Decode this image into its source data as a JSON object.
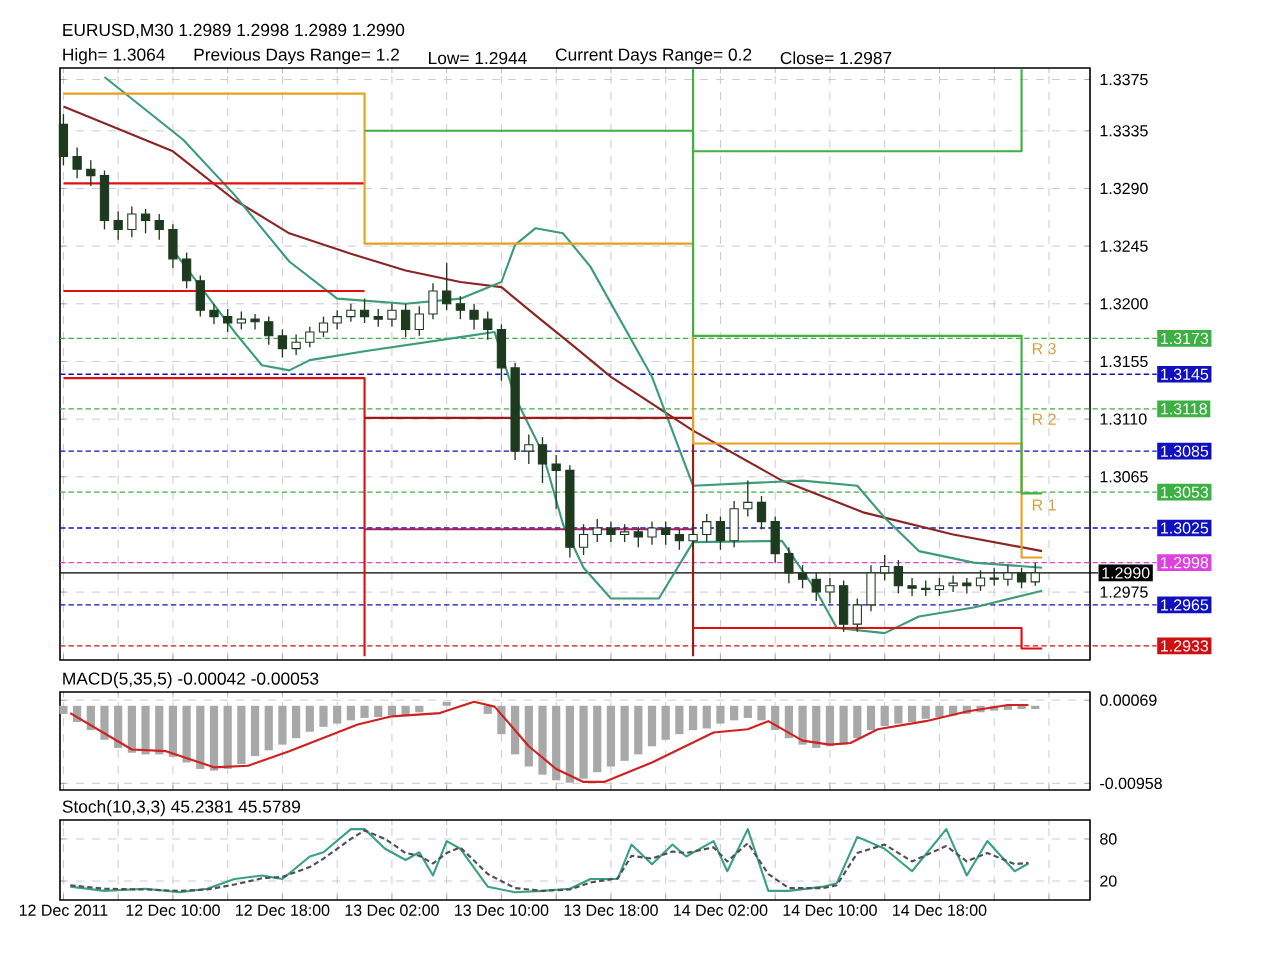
{
  "chart_data": [
    {
      "type": "candlestick",
      "title": "EURUSD,M30  1.2989 1.2998 1.2989 1.2990",
      "annotations": [
        "High= 1.3064",
        "Previous Days Range= 1.2",
        "Low= 1.2944",
        "Current Days Range= 0.2",
        "Close= 1.2987",
        {
          "text": "R 3",
          "x": "2011-12-15T00:30",
          "y": 1.3165
        },
        {
          "text": "R 2",
          "x": "2011-12-15T00:30",
          "y": 1.311
        },
        {
          "text": "R 1",
          "x": "2011-12-15T00:30",
          "y": 1.3043
        }
      ],
      "x": [
        "2011-12-12T02:00",
        "2011-12-12T03:00",
        "2011-12-12T04:00",
        "2011-12-12T05:00",
        "2011-12-12T06:00",
        "2011-12-12T07:00",
        "2011-12-12T08:00",
        "2011-12-12T09:00",
        "2011-12-12T10:00",
        "2011-12-12T11:00",
        "2011-12-12T12:00",
        "2011-12-12T13:00",
        "2011-12-12T14:00",
        "2011-12-12T15:00",
        "2011-12-12T16:00",
        "2011-12-12T17:00",
        "2011-12-12T18:00",
        "2011-12-12T19:00",
        "2011-12-12T20:00",
        "2011-12-12T21:00",
        "2011-12-12T22:00",
        "2011-12-12T23:00",
        "2011-12-13T00:00",
        "2011-12-13T01:00",
        "2011-12-13T02:00",
        "2011-12-13T03:00",
        "2011-12-13T04:00",
        "2011-12-13T05:00",
        "2011-12-13T06:00",
        "2011-12-13T07:00",
        "2011-12-13T08:00",
        "2011-12-13T09:00",
        "2011-12-13T10:00",
        "2011-12-13T11:00",
        "2011-12-13T12:00",
        "2011-12-13T13:00",
        "2011-12-13T14:00",
        "2011-12-13T15:00",
        "2011-12-13T16:00",
        "2011-12-13T17:00",
        "2011-12-13T18:00",
        "2011-12-13T19:00",
        "2011-12-13T20:00",
        "2011-12-13T21:00",
        "2011-12-13T22:00",
        "2011-12-13T23:00",
        "2011-12-14T00:00",
        "2011-12-14T01:00",
        "2011-12-14T02:00",
        "2011-12-14T03:00",
        "2011-12-14T04:00",
        "2011-12-14T05:00",
        "2011-12-14T06:00",
        "2011-12-14T07:00",
        "2011-12-14T08:00",
        "2011-12-14T09:00",
        "2011-12-14T10:00",
        "2011-12-14T11:00",
        "2011-12-14T12:00",
        "2011-12-14T13:00",
        "2011-12-14T14:00",
        "2011-12-14T15:00",
        "2011-12-14T16:00",
        "2011-12-14T17:00",
        "2011-12-14T18:00",
        "2011-12-14T19:00",
        "2011-12-14T20:00",
        "2011-12-14T21:00",
        "2011-12-14T22:00",
        "2011-12-14T23:00",
        "2011-12-15T00:00",
        "2011-12-15T01:00"
      ],
      "ohlc": [
        [
          1.334,
          1.3348,
          1.3308,
          1.3315
        ],
        [
          1.3315,
          1.3322,
          1.3298,
          1.3305
        ],
        [
          1.3305,
          1.3312,
          1.3292,
          1.33
        ],
        [
          1.33,
          1.3304,
          1.3258,
          1.3265
        ],
        [
          1.3265,
          1.3272,
          1.325,
          1.3258
        ],
        [
          1.3258,
          1.3276,
          1.3252,
          1.327
        ],
        [
          1.327,
          1.3274,
          1.3255,
          1.3265
        ],
        [
          1.3265,
          1.327,
          1.325,
          1.3258
        ],
        [
          1.3258,
          1.3262,
          1.3228,
          1.3235
        ],
        [
          1.3235,
          1.324,
          1.3212,
          1.3218
        ],
        [
          1.3218,
          1.3222,
          1.319,
          1.3195
        ],
        [
          1.3195,
          1.32,
          1.3184,
          1.319
        ],
        [
          1.319,
          1.3196,
          1.3178,
          1.3185
        ],
        [
          1.3185,
          1.3194,
          1.318,
          1.3188
        ],
        [
          1.3188,
          1.3192,
          1.318,
          1.3186
        ],
        [
          1.3186,
          1.319,
          1.3168,
          1.3175
        ],
        [
          1.3175,
          1.318,
          1.3158,
          1.3165
        ],
        [
          1.3165,
          1.3176,
          1.316,
          1.317
        ],
        [
          1.317,
          1.3182,
          1.3166,
          1.3178
        ],
        [
          1.3178,
          1.319,
          1.3174,
          1.3185
        ],
        [
          1.3185,
          1.3195,
          1.318,
          1.319
        ],
        [
          1.319,
          1.32,
          1.3186,
          1.3195
        ],
        [
          1.3195,
          1.3204,
          1.3185,
          1.319
        ],
        [
          1.319,
          1.3196,
          1.3182,
          1.3188
        ],
        [
          1.3188,
          1.32,
          1.3182,
          1.3195
        ],
        [
          1.3195,
          1.32,
          1.3174,
          1.318
        ],
        [
          1.318,
          1.3198,
          1.3175,
          1.3192
        ],
        [
          1.3192,
          1.3216,
          1.3188,
          1.321
        ],
        [
          1.321,
          1.3232,
          1.3195,
          1.32
        ],
        [
          1.32,
          1.3206,
          1.3188,
          1.3195
        ],
        [
          1.3195,
          1.32,
          1.318,
          1.3188
        ],
        [
          1.3188,
          1.3194,
          1.3172,
          1.318
        ],
        [
          1.318,
          1.3184,
          1.314,
          1.315
        ],
        [
          1.315,
          1.3154,
          1.3078,
          1.3085
        ],
        [
          1.3085,
          1.3098,
          1.3075,
          1.309
        ],
        [
          1.309,
          1.3096,
          1.306,
          1.3075
        ],
        [
          1.3075,
          1.3082,
          1.304,
          1.307
        ],
        [
          1.307,
          1.3074,
          1.3002,
          1.301
        ],
        [
          1.301,
          1.3028,
          1.3004,
          1.302
        ],
        [
          1.302,
          1.3032,
          1.3014,
          1.3025
        ],
        [
          1.3025,
          1.303,
          1.3014,
          1.302
        ],
        [
          1.302,
          1.3028,
          1.3014,
          1.3022
        ],
        [
          1.3022,
          1.3026,
          1.301,
          1.3018
        ],
        [
          1.3018,
          1.303,
          1.3012,
          1.3025
        ],
        [
          1.3025,
          1.303,
          1.3012,
          1.302
        ],
        [
          1.302,
          1.3024,
          1.3008,
          1.3015
        ],
        [
          1.3015,
          1.3028,
          1.301,
          1.302
        ],
        [
          1.302,
          1.3036,
          1.3014,
          1.303
        ],
        [
          1.303,
          1.3034,
          1.3008,
          1.3015
        ],
        [
          1.3015,
          1.3046,
          1.301,
          1.304
        ],
        [
          1.304,
          1.3062,
          1.3034,
          1.3045
        ],
        [
          1.3045,
          1.305,
          1.3024,
          1.303
        ],
        [
          1.303,
          1.3034,
          1.2998,
          1.3005
        ],
        [
          1.3005,
          1.301,
          1.2982,
          1.299
        ],
        [
          1.299,
          1.2996,
          1.2978,
          1.2985
        ],
        [
          1.2985,
          1.299,
          1.2968,
          1.2975
        ],
        [
          1.2975,
          1.2986,
          1.2966,
          1.298
        ],
        [
          1.298,
          1.2984,
          1.2944,
          1.295
        ],
        [
          1.295,
          1.297,
          1.2944,
          1.2965
        ],
        [
          1.2965,
          1.2996,
          1.296,
          1.299
        ],
        [
          1.299,
          1.3004,
          1.2984,
          1.2995
        ],
        [
          1.2995,
          1.3,
          1.2974,
          1.298
        ],
        [
          1.298,
          1.2986,
          1.2972,
          1.2978
        ],
        [
          1.2978,
          1.2984,
          1.2972,
          1.2977
        ],
        [
          1.2977,
          1.2986,
          1.2972,
          1.298
        ],
        [
          1.298,
          1.2988,
          1.2975,
          1.2982
        ],
        [
          1.2982,
          1.2986,
          1.2974,
          1.298
        ],
        [
          1.298,
          1.2992,
          1.2976,
          1.2986
        ],
        [
          1.2986,
          1.2994,
          1.298,
          1.2985
        ],
        [
          1.2985,
          1.2996,
          1.298,
          1.299
        ],
        [
          1.299,
          1.2994,
          1.2978,
          1.2983
        ],
        [
          1.2983,
          1.2998,
          1.298,
          1.299
        ]
      ],
      "series": [
        {
          "type": "line",
          "color": "#8b2525",
          "x": [
            "2011-12-12T02:00",
            "2011-12-12T10:00",
            "2011-12-12T14:30",
            "2011-12-12T18:30",
            "2011-12-12T23:00",
            "2011-12-13T03:00",
            "2011-12-13T07:00",
            "2011-12-13T10:00",
            "2011-12-13T12:30",
            "2011-12-13T15:30",
            "2011-12-13T18:00",
            "2011-12-14T00:00",
            "2011-12-14T06:30",
            "2011-12-14T12:30",
            "2011-12-14T19:00",
            "2011-12-15T01:30"
          ],
          "values": [
            1.3354,
            1.3319,
            1.3281,
            1.3255,
            1.3239,
            1.3226,
            1.3217,
            1.3213,
            1.3191,
            1.3165,
            1.3143,
            1.3101,
            1.3062,
            1.3037,
            1.302,
            1.3007
          ]
        },
        {
          "type": "line",
          "color": "#3c9c78",
          "x": [
            "2011-12-12T05:00",
            "2011-12-12T10:45",
            "2011-12-12T14:30",
            "2011-12-12T18:30",
            "2011-12-12T22:00",
            "2011-12-13T03:00",
            "2011-12-13T07:00",
            "2011-12-13T10:00",
            "2011-12-13T11:00",
            "2011-12-13T12:30",
            "2011-12-13T14:30",
            "2011-12-13T16:30",
            "2011-12-13T21:00",
            "2011-12-14T00:00",
            "2011-12-14T04:00",
            "2011-12-14T08:00",
            "2011-12-14T12:00",
            "2011-12-14T14:00",
            "2011-12-14T16:30",
            "2011-12-14T20:30",
            "2011-12-15T01:30"
          ],
          "values": [
            1.3377,
            1.3328,
            1.3285,
            1.3233,
            1.3204,
            1.32,
            1.3204,
            1.3217,
            1.3246,
            1.3259,
            1.3255,
            1.3229,
            1.3143,
            1.3058,
            1.306,
            1.3062,
            1.3058,
            1.3033,
            1.3007,
            1.2998,
            1.2994
          ]
        },
        {
          "type": "line",
          "color": "#3c9c78",
          "x": [
            "2011-12-12T10:00",
            "2011-12-12T14:30",
            "2011-12-12T16:30",
            "2011-12-12T18:30",
            "2011-12-12T20:00",
            "2011-12-13T00:00",
            "2011-12-13T07:00",
            "2011-12-13T09:30",
            "2011-12-13T11:00",
            "2011-12-13T13:00",
            "2011-12-13T14:30",
            "2011-12-13T16:00",
            "2011-12-13T18:00",
            "2011-12-13T21:30",
            "2011-12-14T00:00",
            "2011-12-14T06:30",
            "2011-12-14T09:00",
            "2011-12-14T10:30",
            "2011-12-14T14:00",
            "2011-12-14T16:30",
            "2011-12-14T20:30",
            "2011-12-15T01:30"
          ],
          "values": [
            1.3242,
            1.3178,
            1.3152,
            1.3148,
            1.3156,
            1.3163,
            1.3174,
            1.3178,
            1.3127,
            1.3084,
            1.3028,
            1.2994,
            1.297,
            1.297,
            1.3014,
            1.3015,
            1.2976,
            1.2947,
            1.2943,
            1.2956,
            1.2963,
            1.2976
          ]
        },
        {
          "type": "line",
          "color": "#e01010",
          "x": [
            "2011-12-12T02:00",
            "2011-12-13T00:00"
          ],
          "values": [
            1.3294,
            1.3294
          ]
        },
        {
          "type": "line",
          "color": "#e01010",
          "x": [
            "2011-12-12T02:00",
            "2011-12-13T00:00"
          ],
          "values": [
            1.321,
            1.321
          ]
        },
        {
          "type": "line",
          "color": "#e01010",
          "x": [
            "2011-12-12T02:00",
            "2011-12-13T00:00",
            "2011-12-13T00:00"
          ],
          "values": [
            1.3142,
            1.3142,
            1.2925
          ]
        },
        {
          "type": "line",
          "color": "#a01818",
          "x": [
            "2011-12-13T00:00",
            "2011-12-14T00:00",
            "2011-12-14T00:00"
          ],
          "values": [
            1.3111,
            1.3111,
            1.2925
          ]
        },
        {
          "type": "line",
          "color": "#e01010",
          "x": [
            "2011-12-14T00:00",
            "2011-12-15T00:00",
            "2011-12-15T00:00",
            "2011-12-15T01:30"
          ],
          "values": [
            1.2947,
            1.2947,
            1.2931,
            1.2931
          ]
        },
        {
          "type": "line",
          "color": "#a02060",
          "x": [
            "2011-12-13T00:00",
            "2011-12-14T00:00"
          ],
          "values": [
            1.3024,
            1.3024
          ]
        },
        {
          "type": "line",
          "color": "#e8a020",
          "x": [
            "2011-12-12T02:00",
            "2011-12-13T00:00",
            "2011-12-13T00:00",
            "2011-12-14T00:00",
            "2011-12-14T00:00",
            "2011-12-15T00:00",
            "2011-12-15T00:00",
            "2011-12-15T01:30"
          ],
          "values": [
            1.3364,
            1.3364,
            1.3247,
            1.3247,
            1.3091,
            1.3091,
            1.3002,
            1.3002
          ]
        },
        {
          "type": "line",
          "color": "#40b040",
          "x": [
            "2011-12-13T00:00",
            "2011-12-14T00:00",
            "2011-12-14T00:00",
            "2011-12-15T00:00",
            "2011-12-15T00:00",
            "2011-12-15T01:30"
          ],
          "values": [
            1.3335,
            1.3335,
            1.3175,
            1.3175,
            1.3052,
            1.3052
          ]
        },
        {
          "type": "line",
          "color": "#40b040",
          "x": [
            "2011-12-14T00:00",
            "2011-12-14T00:00",
            "2011-12-15T00:00",
            "2011-12-15T00:00"
          ],
          "values": [
            1.3383,
            1.3319,
            1.3319,
            1.3383
          ]
        }
      ],
      "ref_lines": [
        {
          "axis": "y",
          "value": 1.3173,
          "label": "1.3173",
          "color": "#3cb043",
          "line_style": "dashed"
        },
        {
          "axis": "y",
          "value": 1.3145,
          "label": "1.3145",
          "color": "#1010c0",
          "line_style": "dashed"
        },
        {
          "axis": "y",
          "value": 1.3118,
          "label": "1.3118",
          "color": "#3cb043",
          "line_style": "dashed"
        },
        {
          "axis": "y",
          "value": 1.3085,
          "label": "1.3085",
          "color": "#1010c0",
          "line_style": "dashed"
        },
        {
          "axis": "y",
          "value": 1.3053,
          "label": "1.3053",
          "color": "#3cb043",
          "line_style": "dashed"
        },
        {
          "axis": "y",
          "value": 1.3025,
          "label": "1.3025",
          "color": "#1010c0",
          "line_style": "dashed"
        },
        {
          "axis": "y",
          "value": 1.2998,
          "label": "1.2998",
          "color": "#e040e0",
          "line_style": "dashed"
        },
        {
          "axis": "y",
          "value": 1.299,
          "label": "1.2990",
          "color": "#000000",
          "line_style": "solid"
        },
        {
          "axis": "y",
          "value": 1.2965,
          "label": "1.2965",
          "color": "#1010c0",
          "line_style": "dashed"
        },
        {
          "axis": "y",
          "value": 1.2933,
          "label": "1.2933",
          "color": "#d01010",
          "line_style": "dashed"
        }
      ],
      "xlim": [
        "2011-12-12T01:45",
        "2011-12-15T05:00"
      ],
      "xticks": [
        "2011-12-12T02:00",
        "2011-12-12T06:00",
        "2011-12-12T10:00",
        "2011-12-12T14:00",
        "2011-12-12T18:00",
        "2011-12-12T22:00",
        "2011-12-13T02:00",
        "2011-12-13T06:00",
        "2011-12-13T10:00",
        "2011-12-13T14:00",
        "2011-12-13T18:00",
        "2011-12-13T22:00",
        "2011-12-14T02:00",
        "2011-12-14T06:00",
        "2011-12-14T10:00",
        "2011-12-14T14:00",
        "2011-12-14T18:00",
        "2011-12-14T22:00",
        "2011-12-15T02:00"
      ],
      "ylim": [
        1.2922,
        1.3384
      ],
      "yticks": [
        {
          "value": 1.3375,
          "label": "1.3375"
        },
        {
          "value": 1.3335,
          "label": "1.3335"
        },
        {
          "value": 1.329,
          "label": "1.3290"
        },
        {
          "value": 1.3245,
          "label": "1.3245"
        },
        {
          "value": 1.32,
          "label": "1.3200"
        },
        {
          "value": 1.3155,
          "label": "1.3155"
        },
        {
          "value": 1.311,
          "label": "1.3110"
        },
        {
          "value": 1.3065,
          "label": "1.3065"
        },
        {
          "value": 1.2975,
          "label": "1.2975"
        }
      ],
      "grid": true,
      "tick_labels": "y"
    },
    {
      "type": "bar",
      "title": "MACD(5,35,5) -0.00042 -0.00053",
      "series": [
        {
          "color": "#a8a8a8",
          "x": [
            "2011-12-12T02:00",
            "2011-12-12T03:00",
            "2011-12-12T04:00",
            "2011-12-12T05:00",
            "2011-12-12T06:00",
            "2011-12-12T07:00",
            "2011-12-12T08:00",
            "2011-12-12T09:00",
            "2011-12-12T10:00",
            "2011-12-12T11:00",
            "2011-12-12T12:00",
            "2011-12-12T13:00",
            "2011-12-12T14:00",
            "2011-12-12T15:00",
            "2011-12-12T16:00",
            "2011-12-12T17:00",
            "2011-12-12T18:00",
            "2011-12-12T19:00",
            "2011-12-12T20:00",
            "2011-12-12T21:00",
            "2011-12-12T22:00",
            "2011-12-12T23:00",
            "2011-12-13T00:00",
            "2011-12-13T01:00",
            "2011-12-13T02:00",
            "2011-12-13T03:00",
            "2011-12-13T04:00",
            "2011-12-13T05:00",
            "2011-12-13T06:00",
            "2011-12-13T07:00",
            "2011-12-13T08:00",
            "2011-12-13T09:00",
            "2011-12-13T10:00",
            "2011-12-13T11:00",
            "2011-12-13T12:00",
            "2011-12-13T13:00",
            "2011-12-13T14:00",
            "2011-12-13T15:00",
            "2011-12-13T16:00",
            "2011-12-13T17:00",
            "2011-12-13T18:00",
            "2011-12-13T19:00",
            "2011-12-13T20:00",
            "2011-12-13T21:00",
            "2011-12-13T22:00",
            "2011-12-13T23:00",
            "2011-12-14T00:00",
            "2011-12-14T01:00",
            "2011-12-14T02:00",
            "2011-12-14T03:00",
            "2011-12-14T04:00",
            "2011-12-14T05:00",
            "2011-12-14T06:00",
            "2011-12-14T07:00",
            "2011-12-14T08:00",
            "2011-12-14T09:00",
            "2011-12-14T10:00",
            "2011-12-14T11:00",
            "2011-12-14T12:00",
            "2011-12-14T13:00",
            "2011-12-14T14:00",
            "2011-12-14T15:00",
            "2011-12-14T16:00",
            "2011-12-14T17:00",
            "2011-12-14T18:00",
            "2011-12-14T19:00",
            "2011-12-14T20:00",
            "2011-12-14T21:00",
            "2011-12-14T22:00",
            "2011-12-14T23:00",
            "2011-12-15T00:00",
            "2011-12-15T01:00"
          ],
          "values": [
            -0.001,
            -0.002,
            -0.003,
            -0.0042,
            -0.0052,
            -0.0058,
            -0.006,
            -0.006,
            -0.0063,
            -0.007,
            -0.0078,
            -0.008,
            -0.0078,
            -0.0072,
            -0.0062,
            -0.0055,
            -0.0048,
            -0.004,
            -0.0032,
            -0.0026,
            -0.0022,
            -0.0018,
            -0.0015,
            -0.0014,
            -0.0012,
            -0.0012,
            -0.0008,
            null,
            0.0005,
            null,
            null,
            -0.001,
            -0.0035,
            -0.006,
            -0.0075,
            -0.0085,
            -0.0092,
            -0.0095,
            -0.009,
            -0.0082,
            -0.0075,
            -0.0068,
            -0.006,
            -0.005,
            -0.0042,
            -0.0035,
            -0.003,
            -0.0028,
            -0.0022,
            -0.0018,
            -0.0015,
            -0.0018,
            -0.003,
            -0.004,
            -0.0048,
            -0.0052,
            -0.005,
            -0.0048,
            -0.004,
            -0.003,
            -0.0025,
            -0.0022,
            -0.002,
            -0.0016,
            -0.0014,
            -0.0012,
            -0.001,
            -0.0008,
            -0.0006,
            -0.0005,
            -0.0004,
            -0.0004
          ]
        },
        {
          "type": "line",
          "color": "#d02020",
          "x": [
            "2011-12-12T02:30",
            "2011-12-12T07:00",
            "2011-12-12T09:30",
            "2011-12-12T13:00",
            "2011-12-12T15:30",
            "2011-12-12T18:30",
            "2011-12-12T23:30",
            "2011-12-13T02:00",
            "2011-12-13T05:30",
            "2011-12-13T08:00",
            "2011-12-13T09:30",
            "2011-12-13T12:00",
            "2011-12-13T14:00",
            "2011-12-13T16:00",
            "2011-12-13T17:30",
            "2011-12-13T21:00",
            "2011-12-14T01:30",
            "2011-12-14T04:00",
            "2011-12-14T05:30",
            "2011-12-14T08:00",
            "2011-12-14T10:00",
            "2011-12-14T11:30",
            "2011-12-14T13:30",
            "2011-12-14T17:00",
            "2011-12-14T20:00",
            "2011-12-14T23:00",
            "2011-12-15T00:30"
          ],
          "values": [
            -0.0009,
            -0.0054,
            -0.0056,
            -0.0076,
            -0.0074,
            -0.0056,
            -0.0023,
            -0.0013,
            -0.0009,
            0.0005,
            -0.0001,
            -0.005,
            -0.0078,
            -0.0094,
            -0.0094,
            -0.007,
            -0.0033,
            -0.0029,
            -0.0019,
            -0.0043,
            -0.0048,
            -0.0046,
            -0.0029,
            -0.0019,
            -0.0007,
            0.0001,
            0.0001
          ]
        }
      ],
      "xlim": [
        "2011-12-12T01:45",
        "2011-12-15T05:00"
      ],
      "xticks": [
        "2011-12-12T02:00",
        "2011-12-12T06:00",
        "2011-12-12T10:00",
        "2011-12-12T14:00",
        "2011-12-12T18:00",
        "2011-12-12T22:00",
        "2011-12-13T02:00",
        "2011-12-13T06:00",
        "2011-12-13T10:00",
        "2011-12-13T14:00",
        "2011-12-13T18:00",
        "2011-12-13T22:00",
        "2011-12-14T02:00",
        "2011-12-14T06:00",
        "2011-12-14T10:00",
        "2011-12-14T14:00",
        "2011-12-14T18:00",
        "2011-12-14T22:00",
        "2011-12-15T02:00"
      ],
      "ylim": [
        -0.0104,
        0.0017
      ],
      "yticks": [
        {
          "value": 0.00069,
          "label": "0.00069"
        },
        {
          "value": -0.00958,
          "label": "-0.00958"
        }
      ],
      "grid": true,
      "tick_labels": "y"
    },
    {
      "type": "line",
      "title": "Stoch(10,3,3) 45.2381 45.5789",
      "series": [
        {
          "color": "#3aa088",
          "x": [
            "2011-12-12T02:30",
            "2011-12-12T05:00",
            "2011-12-12T08:00",
            "2011-12-12T10:30",
            "2011-12-12T12:30",
            "2011-12-12T14:30",
            "2011-12-12T16:30",
            "2011-12-12T18:00",
            "2011-12-12T20:00",
            "2011-12-12T21:00",
            "2011-12-12T23:00",
            "2011-12-13T00:00",
            "2011-12-13T01:30",
            "2011-12-13T03:00",
            "2011-12-13T04:00",
            "2011-12-13T05:00",
            "2011-12-13T06:00",
            "2011-12-13T07:00",
            "2011-12-13T09:00",
            "2011-12-13T11:00",
            "2011-12-13T13:00",
            "2011-12-13T15:00",
            "2011-12-13T16:30",
            "2011-12-13T18:30",
            "2011-12-13T19:30",
            "2011-12-13T21:00",
            "2011-12-13T22:30",
            "2011-12-13T23:30",
            "2011-12-14T01:30",
            "2011-12-14T02:30",
            "2011-12-14T04:00",
            "2011-12-14T05:30",
            "2011-12-14T07:00",
            "2011-12-14T09:30",
            "2011-12-14T10:30",
            "2011-12-14T12:00",
            "2011-12-14T14:00",
            "2011-12-14T16:00",
            "2011-12-14T18:30",
            "2011-12-14T20:00",
            "2011-12-14T21:30",
            "2011-12-14T23:30",
            "2011-12-15T00:30"
          ],
          "values": [
            12,
            6,
            9,
            4,
            9,
            23,
            28,
            23,
            55,
            61,
            94,
            94,
            66,
            50,
            61,
            28,
            77,
            66,
            12,
            4,
            6,
            9,
            23,
            23,
            72,
            44,
            72,
            55,
            77,
            34,
            94,
            6,
            6,
            12,
            17,
            83,
            66,
            34,
            94,
            28,
            77,
            34,
            45
          ]
        },
        {
          "color": "#505050",
          "line_style": "dashed",
          "x": [
            "2011-12-12T02:30",
            "2011-12-12T05:00",
            "2011-12-12T08:00",
            "2011-12-12T10:30",
            "2011-12-12T12:30",
            "2011-12-12T14:30",
            "2011-12-12T16:30",
            "2011-12-12T18:00",
            "2011-12-12T20:00",
            "2011-12-12T21:00",
            "2011-12-12T23:00",
            "2011-12-13T00:00",
            "2011-12-13T01:30",
            "2011-12-13T03:00",
            "2011-12-13T04:00",
            "2011-12-13T05:00",
            "2011-12-13T06:00",
            "2011-12-13T07:00",
            "2011-12-13T09:00",
            "2011-12-13T11:00",
            "2011-12-13T13:00",
            "2011-12-13T15:00",
            "2011-12-13T16:30",
            "2011-12-13T18:30",
            "2011-12-13T19:30",
            "2011-12-13T21:00",
            "2011-12-13T22:30",
            "2011-12-13T23:30",
            "2011-12-14T01:30",
            "2011-12-14T02:30",
            "2011-12-14T04:00",
            "2011-12-14T05:30",
            "2011-12-14T07:00",
            "2011-12-14T09:30",
            "2011-12-14T10:30",
            "2011-12-14T12:00",
            "2011-12-14T14:00",
            "2011-12-14T16:00",
            "2011-12-14T18:30",
            "2011-12-14T20:00",
            "2011-12-14T21:30",
            "2011-12-14T23:30",
            "2011-12-15T00:30"
          ],
          "values": [
            14,
            9,
            8,
            6,
            8,
            15,
            24,
            26,
            40,
            52,
            80,
            92,
            80,
            60,
            56,
            45,
            60,
            68,
            30,
            10,
            6,
            8,
            18,
            24,
            56,
            52,
            62,
            60,
            68,
            48,
            74,
            30,
            10,
            10,
            14,
            60,
            72,
            48,
            70,
            48,
            60,
            44,
            46
          ]
        }
      ],
      "xlim": [
        "2011-12-12T01:45",
        "2011-12-15T05:00"
      ],
      "xticks": [
        {
          "value": "2011-12-12T02:00",
          "label": "12 Dec 2011"
        },
        {
          "value": "2011-12-12T06:00",
          "label": null
        },
        {
          "value": "2011-12-12T10:00",
          "label": "12 Dec 10:00"
        },
        {
          "value": "2011-12-12T14:00",
          "label": null
        },
        {
          "value": "2011-12-12T18:00",
          "label": "12 Dec 18:00"
        },
        {
          "value": "2011-12-12T22:00",
          "label": null
        },
        {
          "value": "2011-12-13T02:00",
          "label": "13 Dec 02:00"
        },
        {
          "value": "2011-12-13T06:00",
          "label": null
        },
        {
          "value": "2011-12-13T10:00",
          "label": "13 Dec 10:00"
        },
        {
          "value": "2011-12-13T14:00",
          "label": null
        },
        {
          "value": "2011-12-13T18:00",
          "label": "13 Dec 18:00"
        },
        {
          "value": "2011-12-13T22:00",
          "label": null
        },
        {
          "value": "2011-12-14T02:00",
          "label": "14 Dec 02:00"
        },
        {
          "value": "2011-12-14T06:00",
          "label": null
        },
        {
          "value": "2011-12-14T10:00",
          "label": "14 Dec 10:00"
        },
        {
          "value": "2011-12-14T14:00",
          "label": null
        },
        {
          "value": "2011-12-14T18:00",
          "label": "14 Dec 18:00"
        },
        {
          "value": "2011-12-14T22:00",
          "label": null
        },
        {
          "value": "2011-12-15T02:00",
          "label": null
        }
      ],
      "ylim": [
        -7,
        107
      ],
      "yticks": [
        20,
        80
      ],
      "grid": true
    }
  ]
}
